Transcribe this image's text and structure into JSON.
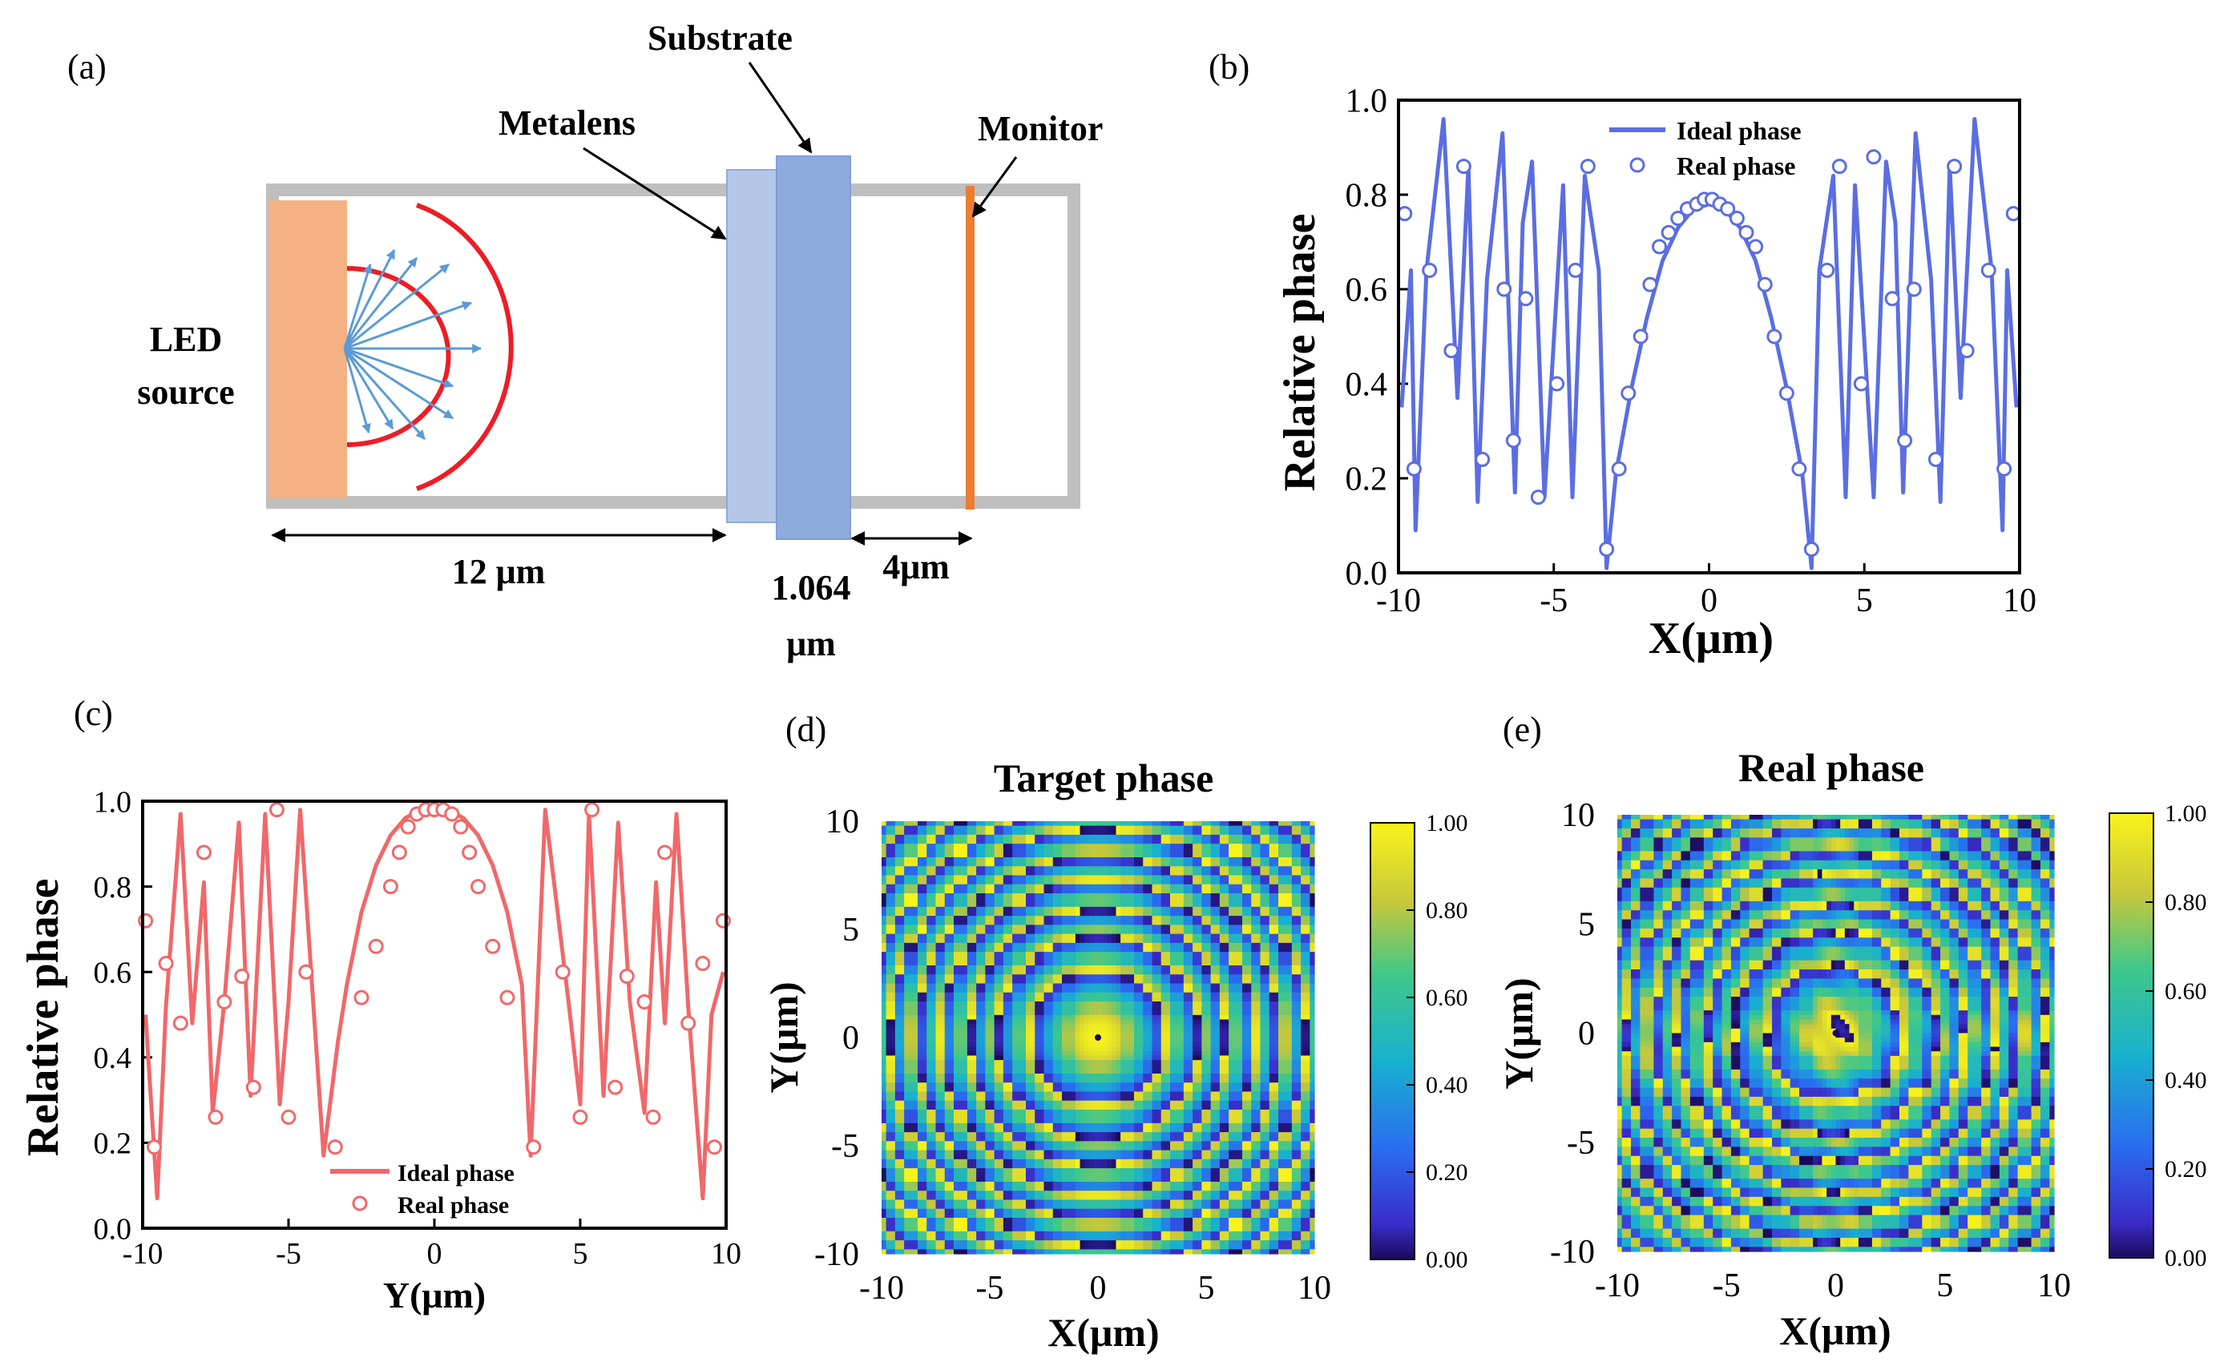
{
  "panels": {
    "a": {
      "label": "(a)",
      "source_label_line1": "LED",
      "source_label_line2": "source",
      "metalens_label": "Metalens",
      "substrate_label": "Substrate",
      "monitor_label": "Monitor",
      "dist_source_metalens": "12 μm",
      "substrate_thickness_line1": "1.064",
      "substrate_thickness_line2": "μm",
      "dist_monitor": "4μm",
      "colors": {
        "source": "#f4b183",
        "wavefront": "#ee1c25",
        "rays": "#5b9bd5",
        "metalens": "#b4c7e7",
        "substrate": "#8faadc",
        "monitor": "#ed7d31",
        "boundary": "#bfbfbf"
      }
    },
    "b": {
      "label": "(b)",
      "xlabel": "X(μm)",
      "ylabel": "Relative phase",
      "legend_line": "Ideal phase",
      "legend_marker": "Real phase",
      "xticks": [
        "-10",
        "-5",
        "0",
        "5",
        "10"
      ],
      "yticks": [
        "0.0",
        "0.2",
        "0.4",
        "0.6",
        "0.8",
        "1.0"
      ],
      "color": "#5b6ee1"
    },
    "c": {
      "label": "(c)",
      "xlabel": "Y(μm)",
      "ylabel": "Relative phase",
      "legend_line": "Ideal phase",
      "legend_marker": "Real phase",
      "xticks": [
        "-10",
        "-5",
        "0",
        "5",
        "10"
      ],
      "yticks": [
        "0.0",
        "0.2",
        "0.4",
        "0.6",
        "0.8",
        "1.0"
      ],
      "color": "#f0686a"
    },
    "d": {
      "label": "(d)",
      "title": "Target phase",
      "xlabel": "X(μm)",
      "ylabel": "Y(μm)",
      "xticks": [
        "-10",
        "-5",
        "0",
        "5",
        "10"
      ],
      "yticks": [
        "10",
        "5",
        "0",
        "-5",
        "-10"
      ],
      "cbar_ticks": [
        "1.00",
        "0.80",
        "0.60",
        "0.40",
        "0.20",
        "0.00"
      ]
    },
    "e": {
      "label": "(e)",
      "title": "Real phase",
      "xlabel": "X(μm)",
      "ylabel": "Y(μm)",
      "xticks": [
        "-10",
        "-5",
        "0",
        "5",
        "10"
      ],
      "yticks": [
        "10",
        "5",
        "0",
        "-5",
        "-10"
      ],
      "cbar_ticks": [
        "1.00",
        "0.80",
        "0.60",
        "0.40",
        "0.20",
        "0.00"
      ]
    }
  },
  "chart_data": [
    {
      "panel": "b",
      "type": "line",
      "title": "",
      "xlabel": "X(μm)",
      "ylabel": "Relative phase",
      "xlim": [
        -10,
        10
      ],
      "ylim": [
        0,
        1
      ],
      "series": [
        {
          "name": "Ideal phase",
          "x": [
            -9.9,
            -9.6,
            -9.45,
            -9.1,
            -8.55,
            -8.1,
            -7.75,
            -7.45,
            -7.15,
            -6.65,
            -6.25,
            -6.0,
            -5.7,
            -5.3,
            -4.7,
            -4.4,
            -4.0,
            -3.55,
            -3.3,
            -3.0,
            -2.5,
            -2.0,
            -1.5,
            -1.0,
            -0.5,
            0.0,
            0.5,
            1.0,
            1.5,
            2.0,
            2.5,
            3.0,
            3.3,
            3.55,
            4.0,
            4.4,
            4.7,
            5.3,
            5.7,
            6.0,
            6.25,
            6.65,
            7.15,
            7.45,
            7.75,
            8.1,
            8.55,
            9.1,
            9.45,
            9.6,
            9.9
          ],
          "values": [
            0.35,
            0.64,
            0.09,
            0.64,
            0.96,
            0.37,
            0.86,
            0.15,
            0.62,
            0.93,
            0.17,
            0.74,
            0.87,
            0.16,
            0.82,
            0.16,
            0.84,
            0.64,
            0.01,
            0.21,
            0.39,
            0.54,
            0.66,
            0.73,
            0.77,
            0.78,
            0.77,
            0.73,
            0.66,
            0.54,
            0.39,
            0.21,
            0.01,
            0.64,
            0.84,
            0.16,
            0.82,
            0.16,
            0.87,
            0.74,
            0.17,
            0.93,
            0.62,
            0.15,
            0.86,
            0.37,
            0.96,
            0.64,
            0.09,
            0.64,
            0.35
          ]
        },
        {
          "name": "Real phase",
          "x": [
            -9.8,
            -9.5,
            -9.0,
            -8.3,
            -7.9,
            -7.3,
            -6.6,
            -6.3,
            -5.9,
            -5.5,
            -4.9,
            -4.3,
            -3.9,
            -3.3,
            -2.9,
            -2.6,
            -2.2,
            -1.9,
            -1.6,
            -1.3,
            -1.0,
            -0.7,
            -0.4,
            -0.15,
            0.1,
            0.35,
            0.6,
            0.9,
            1.2,
            1.5,
            1.8,
            2.1,
            2.5,
            2.9,
            3.3,
            3.8,
            4.2,
            4.9,
            5.3,
            5.9,
            6.3,
            6.6,
            7.3,
            7.9,
            8.3,
            9.0,
            9.5,
            9.8
          ],
          "values": [
            0.76,
            0.22,
            0.64,
            0.47,
            0.86,
            0.24,
            0.6,
            0.28,
            0.58,
            0.16,
            0.4,
            0.64,
            0.86,
            0.05,
            0.22,
            0.38,
            0.5,
            0.61,
            0.69,
            0.72,
            0.75,
            0.77,
            0.78,
            0.79,
            0.79,
            0.78,
            0.77,
            0.75,
            0.72,
            0.69,
            0.61,
            0.5,
            0.38,
            0.22,
            0.05,
            0.64,
            0.86,
            0.4,
            0.88,
            0.58,
            0.28,
            0.6,
            0.24,
            0.86,
            0.47,
            0.64,
            0.22,
            0.76
          ]
        }
      ]
    },
    {
      "panel": "c",
      "type": "line",
      "title": "",
      "xlabel": "Y(μm)",
      "ylabel": "Relative phase",
      "xlim": [
        -10,
        10
      ],
      "ylim": [
        0,
        1
      ],
      "series": [
        {
          "name": "Ideal phase",
          "x": [
            -9.9,
            -9.5,
            -9.2,
            -8.7,
            -8.3,
            -7.9,
            -7.6,
            -7.2,
            -6.7,
            -6.3,
            -5.8,
            -5.3,
            -5.0,
            -4.6,
            -3.8,
            -3.3,
            -3.0,
            -2.5,
            -2.0,
            -1.5,
            -1.0,
            -0.5,
            0.0,
            0.5,
            1.0,
            1.5,
            2.0,
            2.5,
            3.0,
            3.3,
            3.8,
            4.6,
            5.0,
            5.3,
            5.8,
            6.3,
            6.7,
            7.2,
            7.6,
            7.9,
            8.3,
            8.7,
            9.2,
            9.5,
            9.9
          ],
          "values": [
            0.5,
            0.07,
            0.52,
            0.97,
            0.48,
            0.81,
            0.27,
            0.53,
            0.95,
            0.31,
            0.97,
            0.29,
            0.53,
            0.98,
            0.17,
            0.44,
            0.57,
            0.74,
            0.85,
            0.92,
            0.96,
            0.98,
            0.98,
            0.98,
            0.96,
            0.92,
            0.85,
            0.74,
            0.57,
            0.17,
            0.98,
            0.53,
            0.29,
            0.97,
            0.31,
            0.95,
            0.53,
            0.27,
            0.81,
            0.48,
            0.97,
            0.52,
            0.07,
            0.5,
            0.6
          ]
        },
        {
          "name": "Real phase",
          "x": [
            -9.9,
            -9.6,
            -9.2,
            -8.7,
            -7.9,
            -7.5,
            -7.2,
            -6.6,
            -6.2,
            -5.4,
            -5.0,
            -4.4,
            -3.4,
            -2.5,
            -2.0,
            -1.5,
            -1.2,
            -0.9,
            -0.6,
            -0.3,
            0.0,
            0.3,
            0.6,
            0.9,
            1.2,
            1.5,
            2.0,
            2.5,
            3.4,
            4.4,
            5.0,
            5.4,
            6.2,
            6.6,
            7.2,
            7.5,
            7.9,
            8.7,
            9.2,
            9.6,
            9.9
          ],
          "values": [
            0.72,
            0.19,
            0.62,
            0.48,
            0.88,
            0.26,
            0.53,
            0.59,
            0.33,
            0.98,
            0.26,
            0.6,
            0.19,
            0.54,
            0.66,
            0.8,
            0.88,
            0.94,
            0.97,
            0.98,
            0.98,
            0.98,
            0.97,
            0.94,
            0.88,
            0.8,
            0.66,
            0.54,
            0.19,
            0.6,
            0.26,
            0.98,
            0.33,
            0.59,
            0.53,
            0.26,
            0.88,
            0.48,
            0.62,
            0.19,
            0.72
          ]
        }
      ]
    },
    {
      "panel": "d",
      "type": "heatmap",
      "title": "Target phase",
      "xlabel": "X(μm)",
      "ylabel": "Y(μm)",
      "xlim": [
        -10,
        10
      ],
      "ylim": [
        -10,
        10
      ],
      "colorbar_range": [
        0,
        1
      ]
    },
    {
      "panel": "e",
      "type": "heatmap",
      "title": "Real phase",
      "xlabel": "X(μm)",
      "ylabel": "Y(μm)",
      "xlim": [
        -10,
        10
      ],
      "ylim": [
        -10,
        10
      ],
      "colorbar_range": [
        0,
        1
      ]
    }
  ]
}
